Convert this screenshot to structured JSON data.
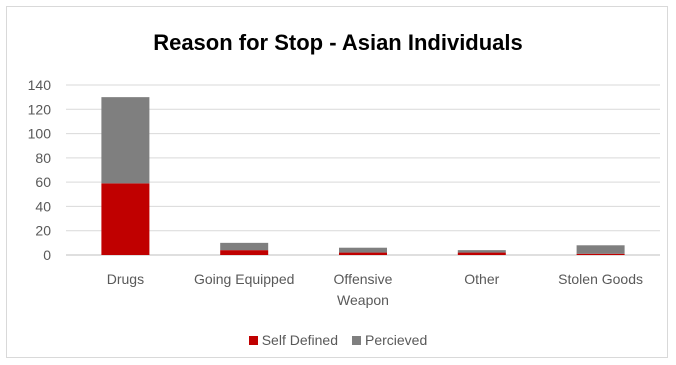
{
  "chart_data": {
    "type": "bar",
    "stacked": true,
    "title": "Reason for Stop - Asian Individuals",
    "categories": [
      "Drugs",
      "Going Equipped",
      "Offensive Weapon",
      "Other",
      "Stolen Goods"
    ],
    "category_label_lines": [
      [
        "Drugs"
      ],
      [
        "Going Equipped"
      ],
      [
        "Offensive",
        "Weapon"
      ],
      [
        "Other"
      ],
      [
        "Stolen Goods"
      ]
    ],
    "series": [
      {
        "name": "Self Defined",
        "color": "#c00000",
        "values": [
          59,
          4,
          2,
          2,
          1
        ]
      },
      {
        "name": "Percieved",
        "color": "#7f7f7f",
        "values": [
          71,
          6,
          4,
          2,
          7
        ]
      }
    ],
    "y_ticks": [
      "0",
      "20",
      "40",
      "60",
      "80",
      "100",
      "120",
      "140"
    ],
    "ylim": [
      0,
      140
    ],
    "grid": true,
    "legend": "bottom",
    "gridline_color": "#d9d9d9"
  }
}
